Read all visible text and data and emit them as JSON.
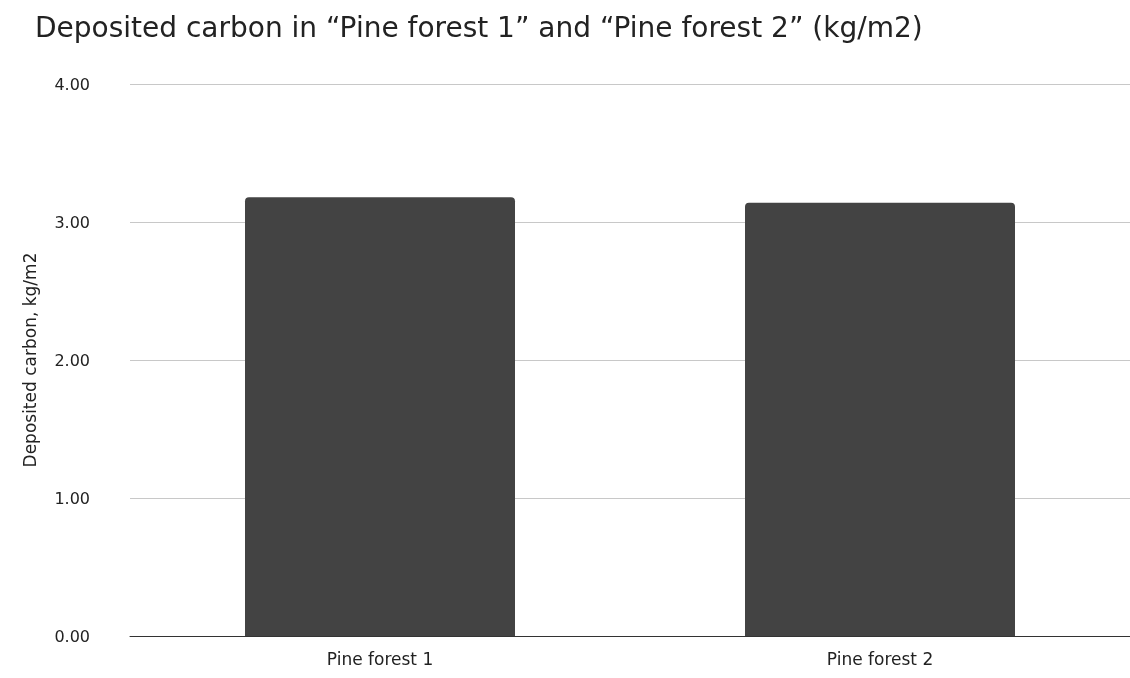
{
  "chart_data": {
    "type": "bar",
    "title": "Deposited carbon in “Pine forest 1” and “Pine forest 2” (kg/m2)",
    "ylabel": "Deposited carbon, kg/m2",
    "categories": [
      "Pine forest 1",
      "Pine forest 2"
    ],
    "values": [
      3.18,
      3.14
    ],
    "color": "#434343",
    "ylim": [
      0,
      4
    ],
    "yticks": [
      {
        "value": 0,
        "label": "0.00"
      },
      {
        "value": 1,
        "label": "1.00"
      },
      {
        "value": 2,
        "label": "2.00"
      },
      {
        "value": 3,
        "label": "3.00"
      },
      {
        "value": 4,
        "label": "4.00"
      }
    ],
    "grid": true
  }
}
